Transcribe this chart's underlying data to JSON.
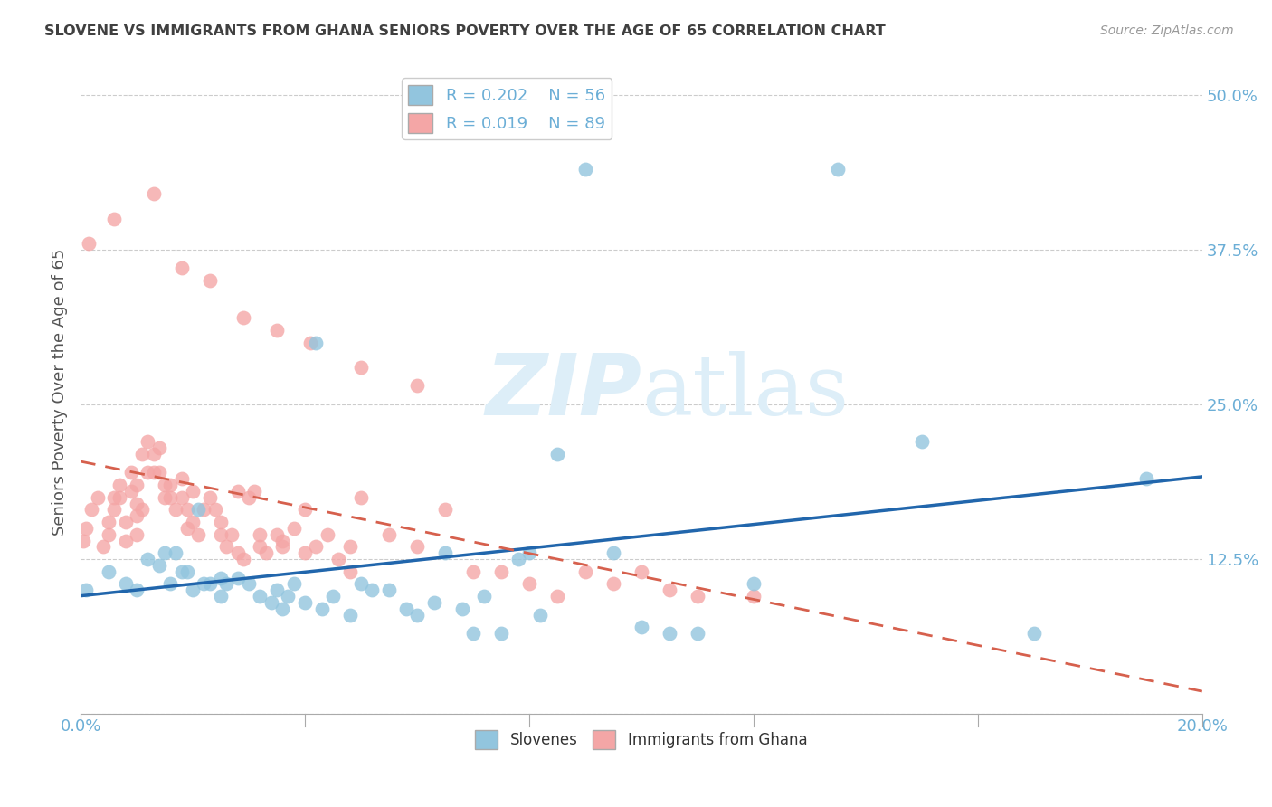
{
  "title": "SLOVENE VS IMMIGRANTS FROM GHANA SENIORS POVERTY OVER THE AGE OF 65 CORRELATION CHART",
  "source": "Source: ZipAtlas.com",
  "ylabel": "Seniors Poverty Over the Age of 65",
  "xlim": [
    0.0,
    0.2
  ],
  "ylim": [
    0.0,
    0.52
  ],
  "yticks": [
    0.0,
    0.125,
    0.25,
    0.375,
    0.5
  ],
  "ytick_labels": [
    "",
    "12.5%",
    "25.0%",
    "37.5%",
    "50.0%"
  ],
  "xticks": [
    0.0,
    0.04,
    0.08,
    0.12,
    0.16,
    0.2
  ],
  "xtick_labels": [
    "0.0%",
    "",
    "",
    "",
    "",
    "20.0%"
  ],
  "legend_r1": "R = 0.202",
  "legend_n1": "N = 56",
  "legend_r2": "R = 0.019",
  "legend_n2": "N = 89",
  "color_slovene": "#92c5de",
  "color_ghana": "#f4a6a6",
  "color_trend_slovene": "#2166ac",
  "color_trend_ghana": "#d6604d",
  "title_color": "#404040",
  "source_color": "#999999",
  "axis_label_color": "#6baed6",
  "watermark_zip": "ZIP",
  "watermark_atlas": "atlas",
  "watermark_color": "#ddeef8",
  "background_color": "#ffffff",
  "slovene_x": [
    0.001,
    0.005,
    0.008,
    0.01,
    0.012,
    0.014,
    0.015,
    0.016,
    0.017,
    0.018,
    0.019,
    0.02,
    0.021,
    0.022,
    0.023,
    0.025,
    0.025,
    0.026,
    0.028,
    0.03,
    0.032,
    0.034,
    0.035,
    0.036,
    0.037,
    0.038,
    0.04,
    0.042,
    0.043,
    0.045,
    0.048,
    0.05,
    0.052,
    0.055,
    0.058,
    0.06,
    0.063,
    0.065,
    0.068,
    0.07,
    0.072,
    0.075,
    0.078,
    0.08,
    0.082,
    0.085,
    0.09,
    0.095,
    0.1,
    0.105,
    0.11,
    0.12,
    0.135,
    0.15,
    0.17,
    0.19
  ],
  "slovene_y": [
    0.1,
    0.115,
    0.105,
    0.1,
    0.125,
    0.12,
    0.13,
    0.105,
    0.13,
    0.115,
    0.115,
    0.1,
    0.165,
    0.105,
    0.105,
    0.11,
    0.095,
    0.105,
    0.11,
    0.105,
    0.095,
    0.09,
    0.1,
    0.085,
    0.095,
    0.105,
    0.09,
    0.3,
    0.085,
    0.095,
    0.08,
    0.105,
    0.1,
    0.1,
    0.085,
    0.08,
    0.09,
    0.13,
    0.085,
    0.065,
    0.095,
    0.065,
    0.125,
    0.13,
    0.08,
    0.21,
    0.44,
    0.13,
    0.07,
    0.065,
    0.065,
    0.105,
    0.44,
    0.22,
    0.065,
    0.19
  ],
  "ghana_x": [
    0.001,
    0.002,
    0.003,
    0.004,
    0.005,
    0.005,
    0.006,
    0.006,
    0.007,
    0.007,
    0.008,
    0.008,
    0.009,
    0.009,
    0.01,
    0.01,
    0.01,
    0.011,
    0.011,
    0.012,
    0.012,
    0.013,
    0.013,
    0.014,
    0.014,
    0.015,
    0.015,
    0.016,
    0.016,
    0.017,
    0.018,
    0.018,
    0.019,
    0.019,
    0.02,
    0.021,
    0.022,
    0.023,
    0.024,
    0.025,
    0.026,
    0.027,
    0.028,
    0.029,
    0.03,
    0.031,
    0.032,
    0.033,
    0.035,
    0.036,
    0.038,
    0.04,
    0.042,
    0.044,
    0.046,
    0.048,
    0.05,
    0.055,
    0.06,
    0.065,
    0.07,
    0.075,
    0.08,
    0.085,
    0.09,
    0.095,
    0.1,
    0.105,
    0.11,
    0.12,
    0.0005,
    0.01,
    0.02,
    0.025,
    0.028,
    0.032,
    0.036,
    0.04,
    0.048,
    0.0015,
    0.006,
    0.013,
    0.018,
    0.023,
    0.029,
    0.035,
    0.041,
    0.05,
    0.06
  ],
  "ghana_y": [
    0.15,
    0.165,
    0.175,
    0.135,
    0.145,
    0.155,
    0.175,
    0.165,
    0.185,
    0.175,
    0.14,
    0.155,
    0.18,
    0.195,
    0.185,
    0.16,
    0.17,
    0.21,
    0.165,
    0.195,
    0.22,
    0.195,
    0.21,
    0.215,
    0.195,
    0.175,
    0.185,
    0.175,
    0.185,
    0.165,
    0.175,
    0.19,
    0.15,
    0.165,
    0.155,
    0.145,
    0.165,
    0.175,
    0.165,
    0.155,
    0.135,
    0.145,
    0.18,
    0.125,
    0.175,
    0.18,
    0.145,
    0.13,
    0.145,
    0.14,
    0.15,
    0.13,
    0.135,
    0.145,
    0.125,
    0.115,
    0.175,
    0.145,
    0.135,
    0.165,
    0.115,
    0.115,
    0.105,
    0.095,
    0.115,
    0.105,
    0.115,
    0.1,
    0.095,
    0.095,
    0.14,
    0.145,
    0.18,
    0.145,
    0.13,
    0.135,
    0.135,
    0.165,
    0.135,
    0.38,
    0.4,
    0.42,
    0.36,
    0.35,
    0.32,
    0.31,
    0.3,
    0.28,
    0.265
  ]
}
